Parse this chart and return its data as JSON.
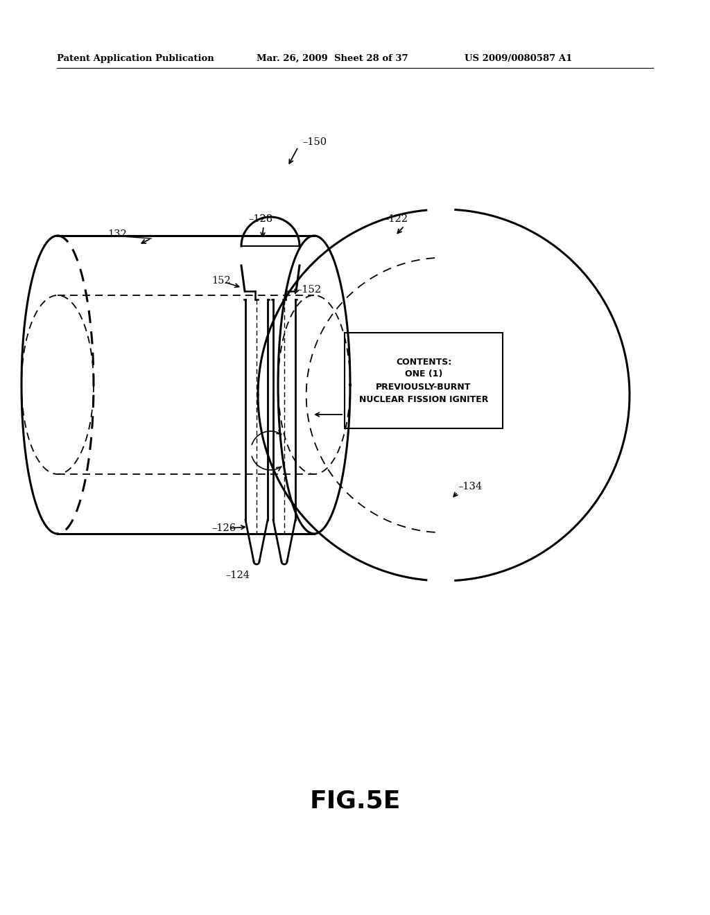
{
  "bg_color": "#ffffff",
  "line_color": "#000000",
  "header_left": "Patent Application Publication",
  "header_mid": "Mar. 26, 2009  Sheet 28 of 37",
  "header_right": "US 2009/0080587 A1",
  "fig_label": "FIG.5E",
  "contents_text": "CONTENTS:\nONE (1)\nPREVIOUSLY-BURNT\nNUCLEAR FISSION IGNITER"
}
